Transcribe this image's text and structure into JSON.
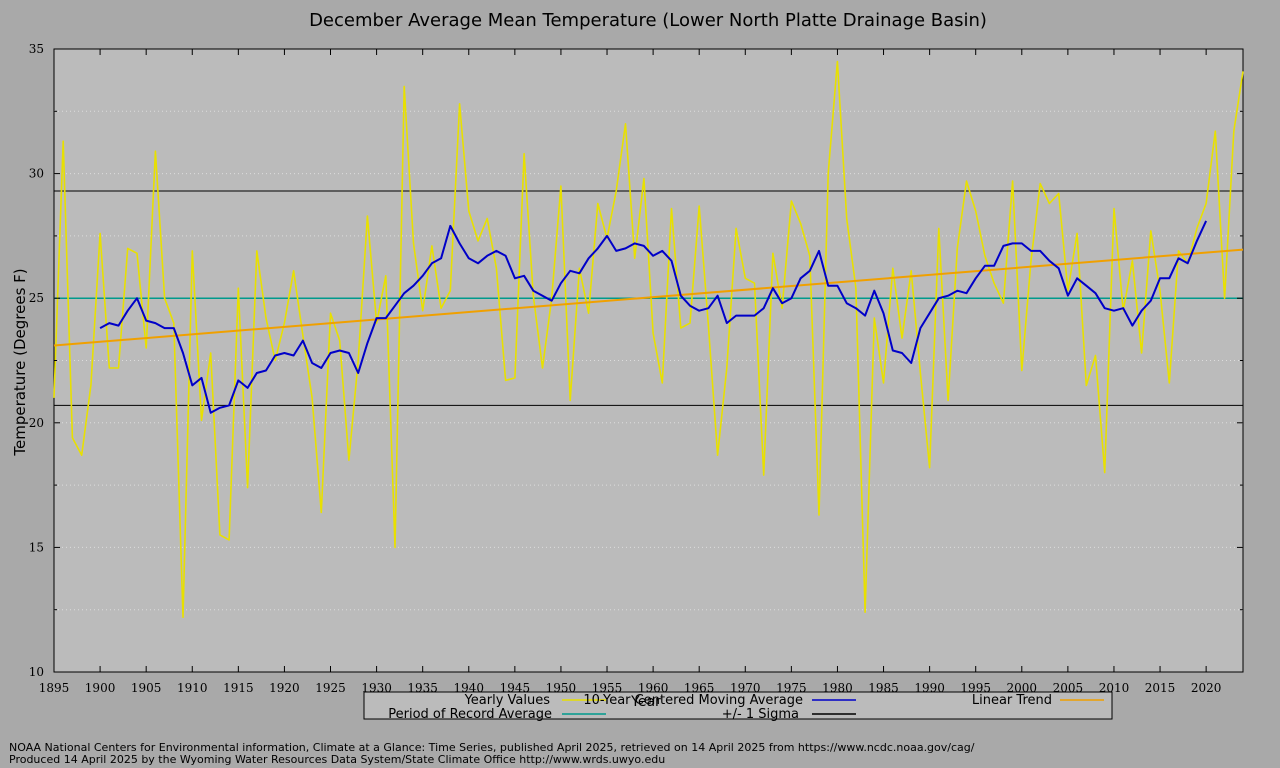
{
  "chart_data": {
    "type": "line",
    "title": "December Average Mean Temperature (Lower North Platte Drainage Basin)",
    "xlabel": "Year",
    "ylabel": "Temperature (Degrees F)",
    "xlim": [
      1895,
      2024
    ],
    "ylim": [
      10,
      35
    ],
    "x_ticks": [
      1895,
      1900,
      1905,
      1910,
      1915,
      1920,
      1925,
      1930,
      1935,
      1940,
      1945,
      1950,
      1955,
      1960,
      1965,
      1970,
      1975,
      1980,
      1985,
      1990,
      1995,
      2000,
      2005,
      2010,
      2015,
      2020
    ],
    "y_ticks": [
      10,
      15,
      20,
      25,
      30,
      35
    ],
    "grid": true,
    "legend_position": "bottom",
    "series": [
      {
        "name": "Yearly Values",
        "color": "#e8e000",
        "x": [
          1895,
          1896,
          1897,
          1898,
          1899,
          1900,
          1901,
          1902,
          1903,
          1904,
          1905,
          1906,
          1907,
          1908,
          1909,
          1910,
          1911,
          1912,
          1913,
          1914,
          1915,
          1916,
          1917,
          1918,
          1919,
          1920,
          1921,
          1922,
          1923,
          1924,
          1925,
          1926,
          1927,
          1928,
          1929,
          1930,
          1931,
          1932,
          1933,
          1934,
          1935,
          1936,
          1937,
          1938,
          1939,
          1940,
          1941,
          1942,
          1943,
          1944,
          1945,
          1946,
          1947,
          1948,
          1949,
          1950,
          1951,
          1952,
          1953,
          1954,
          1955,
          1956,
          1957,
          1958,
          1959,
          1960,
          1961,
          1962,
          1963,
          1964,
          1965,
          1966,
          1967,
          1968,
          1969,
          1970,
          1971,
          1972,
          1973,
          1974,
          1975,
          1976,
          1977,
          1978,
          1979,
          1980,
          1981,
          1982,
          1983,
          1984,
          1985,
          1986,
          1987,
          1988,
          1989,
          1990,
          1991,
          1992,
          1993,
          1994,
          1995,
          1996,
          1997,
          1998,
          1999,
          2000,
          2001,
          2002,
          2003,
          2004,
          2005,
          2006,
          2007,
          2008,
          2009,
          2010,
          2011,
          2012,
          2013,
          2014,
          2015,
          2016,
          2017,
          2018,
          2019,
          2020,
          2021,
          2022,
          2023,
          2024
        ],
        "values": [
          21.0,
          31.3,
          19.4,
          18.7,
          21.5,
          27.6,
          22.2,
          22.2,
          27.0,
          26.8,
          23.0,
          30.9,
          25.0,
          24.0,
          12.2,
          26.9,
          20.1,
          22.8,
          15.5,
          15.3,
          25.4,
          17.4,
          26.9,
          24.2,
          22.5,
          24.0,
          26.1,
          23.5,
          21.0,
          16.4,
          24.4,
          23.3,
          18.5,
          22.5,
          28.3,
          24.0,
          25.9,
          15.0,
          33.5,
          27.2,
          24.5,
          27.1,
          24.6,
          25.3,
          32.8,
          28.5,
          27.3,
          28.2,
          26.2,
          21.7,
          21.8,
          30.8,
          25.1,
          22.2,
          25.0,
          29.5,
          20.9,
          26.2,
          24.4,
          28.8,
          27.4,
          29.3,
          32.0,
          26.6,
          29.8,
          23.6,
          21.6,
          28.6,
          23.8,
          24.0,
          28.7,
          23.9,
          18.7,
          22.2,
          27.8,
          25.8,
          25.6,
          17.9,
          26.8,
          24.6,
          28.9,
          28.0,
          26.7,
          16.3,
          30.0,
          34.5,
          28.2,
          25.4,
          12.4,
          24.2,
          21.6,
          26.2,
          23.4,
          26.1,
          22.0,
          18.2,
          27.8,
          20.9,
          27.0,
          29.7,
          28.5,
          26.7,
          25.6,
          24.8,
          29.7,
          22.1,
          26.5,
          29.6,
          28.8,
          29.2,
          25.3,
          27.6,
          21.5,
          22.7,
          18.0,
          28.6,
          24.5,
          26.5,
          22.8,
          27.7,
          25.3,
          21.6,
          26.9,
          26.4,
          27.8,
          28.8,
          31.7,
          25.0,
          31.7,
          34.1
        ]
      },
      {
        "name": "10-Year Centered Moving Average",
        "color": "#0000c8",
        "x": [
          1900,
          1901,
          1902,
          1903,
          1904,
          1905,
          1906,
          1907,
          1908,
          1909,
          1910,
          1911,
          1912,
          1913,
          1914,
          1915,
          1916,
          1917,
          1918,
          1919,
          1920,
          1921,
          1922,
          1923,
          1924,
          1925,
          1926,
          1927,
          1928,
          1929,
          1930,
          1931,
          1932,
          1933,
          1934,
          1935,
          1936,
          1937,
          1938,
          1939,
          1940,
          1941,
          1942,
          1943,
          1944,
          1945,
          1946,
          1947,
          1948,
          1949,
          1950,
          1951,
          1952,
          1953,
          1954,
          1955,
          1956,
          1957,
          1958,
          1959,
          1960,
          1961,
          1962,
          1963,
          1964,
          1965,
          1966,
          1967,
          1968,
          1969,
          1970,
          1971,
          1972,
          1973,
          1974,
          1975,
          1976,
          1977,
          1978,
          1979,
          1980,
          1981,
          1982,
          1983,
          1984,
          1985,
          1986,
          1987,
          1988,
          1989,
          1990,
          1991,
          1992,
          1993,
          1994,
          1995,
          1996,
          1997,
          1998,
          1999,
          2000,
          2001,
          2002,
          2003,
          2004,
          2005,
          2006,
          2007,
          2008,
          2009,
          2010,
          2011,
          2012,
          2013,
          2014,
          2015,
          2016,
          2017,
          2018,
          2019,
          2020
        ],
        "values": [
          23.8,
          24.0,
          23.9,
          24.5,
          25.0,
          24.1,
          24.0,
          23.8,
          23.8,
          22.8,
          21.5,
          21.8,
          20.4,
          20.6,
          20.7,
          21.7,
          21.4,
          22.0,
          22.1,
          22.7,
          22.8,
          22.7,
          23.3,
          22.4,
          22.2,
          22.8,
          22.9,
          22.8,
          22.0,
          23.2,
          24.2,
          24.2,
          24.7,
          25.2,
          25.5,
          25.9,
          26.4,
          26.6,
          27.9,
          27.2,
          26.6,
          26.4,
          26.7,
          26.9,
          26.7,
          25.8,
          25.9,
          25.3,
          25.1,
          24.9,
          25.6,
          26.1,
          26.0,
          26.6,
          27.0,
          27.5,
          26.9,
          27.0,
          27.2,
          27.1,
          26.7,
          26.9,
          26.5,
          25.1,
          24.7,
          24.5,
          24.6,
          25.1,
          24.0,
          24.3,
          24.3,
          24.3,
          24.6,
          25.4,
          24.8,
          25.0,
          25.8,
          26.1,
          26.9,
          25.5,
          25.5,
          24.8,
          24.6,
          24.3,
          25.3,
          24.4,
          22.9,
          22.8,
          22.4,
          23.8,
          24.4,
          25.0,
          25.1,
          25.3,
          25.2,
          25.8,
          26.3,
          26.3,
          27.1,
          27.2,
          27.2,
          26.9,
          26.9,
          26.5,
          26.2,
          25.1,
          25.8,
          25.5,
          25.2,
          24.6,
          24.5,
          24.6,
          23.9,
          24.5,
          24.9,
          25.8,
          25.8,
          26.6,
          26.4,
          27.3,
          28.1
        ]
      },
      {
        "name": "Linear Trend",
        "color": "#f0a000",
        "x": [
          1895,
          2024
        ],
        "values": [
          23.1,
          26.95
        ]
      },
      {
        "name": "Period of Record Average",
        "color": "#009a8c",
        "x": [
          1895,
          2024
        ],
        "values": [
          25.0,
          25.0
        ]
      },
      {
        "name": "+/- 1 Sigma",
        "color": "#000000",
        "x": [
          1895,
          2024
        ],
        "values": [
          29.3,
          29.3
        ],
        "lower_values": [
          20.7,
          20.7
        ]
      }
    ],
    "footer": [
      "NOAA National Centers for Environmental information, Climate at a Glance: Time Series, published April 2025, retrieved on 14 April 2025 from https://www.ncdc.noaa.gov/cag/",
      "Produced 14 April 2025 by the Wyoming Water Resources Data System/State Climate Office http://www.wrds.uwyo.edu"
    ]
  }
}
